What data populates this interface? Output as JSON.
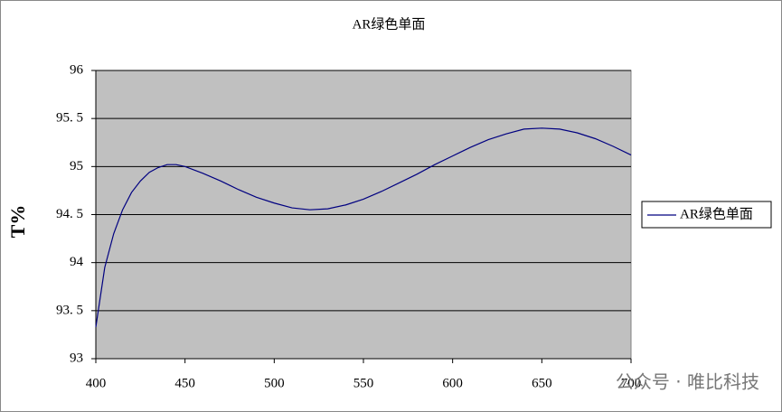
{
  "chart_data": {
    "type": "line",
    "title": "AR绿色单面",
    "y_label": "T%",
    "x": [
      400,
      405,
      410,
      415,
      420,
      425,
      430,
      435,
      440,
      445,
      450,
      460,
      470,
      480,
      490,
      500,
      510,
      520,
      530,
      540,
      550,
      560,
      570,
      580,
      590,
      600,
      610,
      620,
      630,
      640,
      650,
      660,
      670,
      680,
      690,
      700
    ],
    "series": [
      {
        "name": "AR绿色单面",
        "color": "#000080",
        "values": [
          93.33,
          93.95,
          94.3,
          94.55,
          94.73,
          94.85,
          94.94,
          94.99,
          95.02,
          95.02,
          95.0,
          94.93,
          94.85,
          94.76,
          94.68,
          94.62,
          94.57,
          94.55,
          94.56,
          94.6,
          94.66,
          94.74,
          94.83,
          94.92,
          95.02,
          95.11,
          95.2,
          95.28,
          95.34,
          95.39,
          95.4,
          95.39,
          95.35,
          95.29,
          95.21,
          95.12
        ]
      }
    ],
    "xlim": [
      400,
      700
    ],
    "xticks": [
      400,
      450,
      500,
      550,
      600,
      650,
      700
    ],
    "ylim": [
      93,
      96
    ],
    "yticks": [
      93,
      {
        "value": 93.5,
        "label": "93. 5"
      },
      94,
      {
        "value": 94.5,
        "label": "94. 5"
      },
      95,
      {
        "value": 95.5,
        "label": "95. 5"
      },
      96
    ],
    "grid": true,
    "legend": "right",
    "plot_background": "#c0c0c0"
  },
  "watermark": "公众号 · 唯比科技"
}
